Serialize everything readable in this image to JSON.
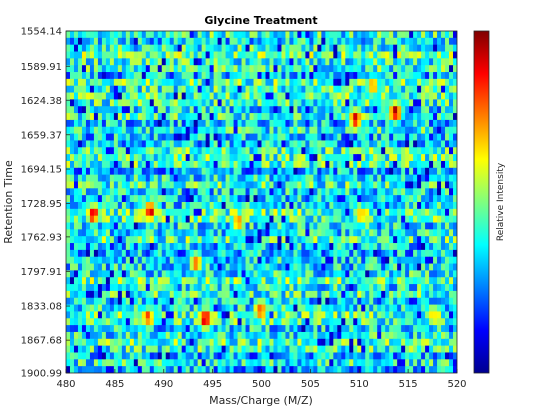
{
  "chart_data": {
    "type": "heatmap",
    "title": "Glycine Treatment",
    "xlabel": "Mass/Charge (M/Z)",
    "ylabel": "Retention Time",
    "colorbar_label": "Relative Intensity",
    "colormap": "jet",
    "xlim": [
      480,
      520
    ],
    "ylim": [
      1554.14,
      1900.99
    ],
    "y_direction": "reversed",
    "x_ticks": [
      "480",
      "485",
      "490",
      "495",
      "500",
      "505",
      "510",
      "515",
      "520"
    ],
    "y_ticks": [
      "1554.14",
      "1589.91",
      "1624.38",
      "1659.37",
      "1694.15",
      "1728.95",
      "1762.93",
      "1797.91",
      "1833.08",
      "1867.68",
      "1900.99"
    ],
    "intensity_range": [
      0,
      1
    ],
    "hotspots": [
      {
        "mz": 482.8,
        "rt": 1740,
        "intensity": 0.88
      },
      {
        "mz": 488.6,
        "rt": 1737,
        "intensity": 0.92
      },
      {
        "mz": 488.4,
        "rt": 1845,
        "intensity": 0.82
      },
      {
        "mz": 494.3,
        "rt": 1846,
        "intensity": 0.93
      },
      {
        "mz": 493.3,
        "rt": 1789,
        "intensity": 0.78
      },
      {
        "mz": 499.9,
        "rt": 1837,
        "intensity": 0.85
      },
      {
        "mz": 497.6,
        "rt": 1748,
        "intensity": 0.72
      },
      {
        "mz": 509.6,
        "rt": 1643,
        "intensity": 0.88
      },
      {
        "mz": 513.7,
        "rt": 1636,
        "intensity": 0.92
      },
      {
        "mz": 511.4,
        "rt": 1610,
        "intensity": 0.72
      },
      {
        "mz": 517.6,
        "rt": 1843,
        "intensity": 0.7
      },
      {
        "mz": 510.2,
        "rt": 1742,
        "intensity": 0.7
      }
    ]
  },
  "colors": {
    "background": "#ffffff",
    "axis": "#262626",
    "colormap_stops": [
      "#00008f",
      "#0000ff",
      "#00ffff",
      "#ffff00",
      "#ff0000",
      "#800000"
    ]
  }
}
